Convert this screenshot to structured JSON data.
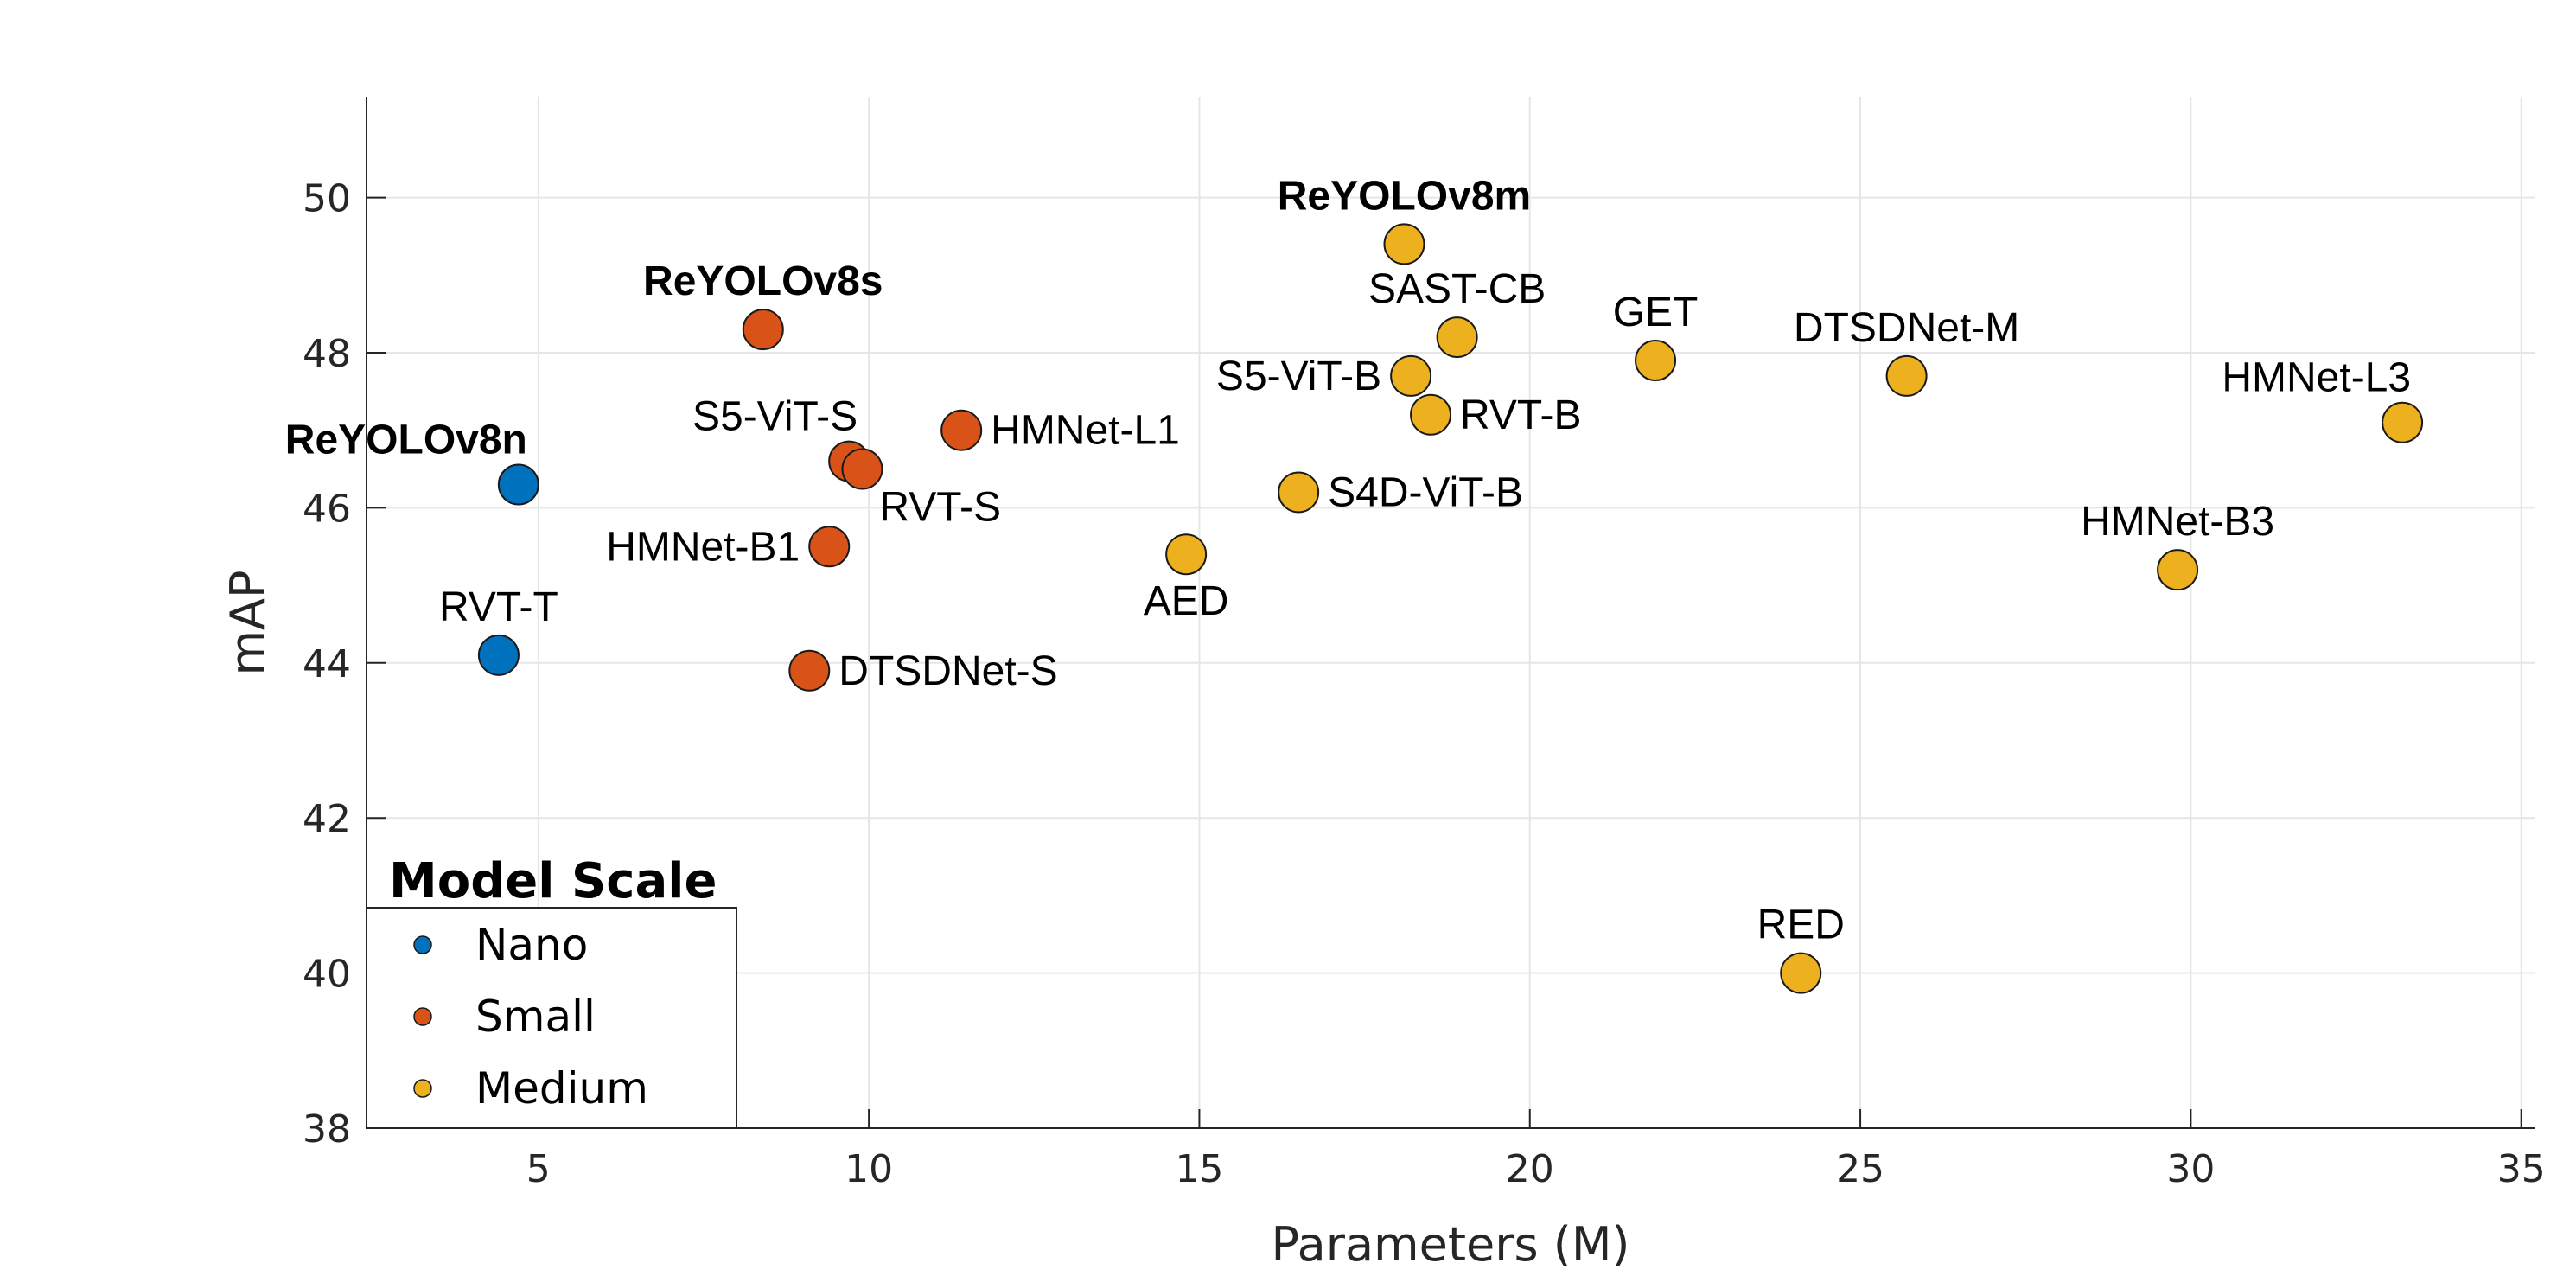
{
  "chart_data": {
    "type": "scatter",
    "title": "",
    "xlabel": "Parameters (M)",
    "ylabel": "mAP",
    "xlim": [
      2.4,
      35.2
    ],
    "ylim": [
      38,
      51.3
    ],
    "xticks": [
      5,
      10,
      15,
      20,
      25,
      30,
      35
    ],
    "yticks": [
      38,
      40,
      42,
      44,
      46,
      48,
      50
    ],
    "grid": true,
    "legend": {
      "title": "Model Scale",
      "placement": "bottom-left",
      "entries": [
        {
          "name": "Nano",
          "color": "#0072BD"
        },
        {
          "name": "Small",
          "color": "#D95319"
        },
        {
          "name": "Medium",
          "color": "#EDB120"
        }
      ]
    },
    "points": [
      {
        "name": "ReYOLOv8n",
        "x": 4.7,
        "y": 46.3,
        "scale": "Nano",
        "bold": true,
        "label_pos": "above-left"
      },
      {
        "name": "RVT-T",
        "x": 4.4,
        "y": 44.1,
        "scale": "Nano",
        "bold": false,
        "label_pos": "above"
      },
      {
        "name": "ReYOLOv8s",
        "x": 8.4,
        "y": 48.3,
        "scale": "Small",
        "bold": true,
        "label_pos": "above"
      },
      {
        "name": "S5-ViT-S",
        "x": 9.7,
        "y": 46.6,
        "scale": "Small",
        "bold": false,
        "label_pos": "above-left"
      },
      {
        "name": "RVT-S",
        "x": 9.9,
        "y": 46.5,
        "scale": "Small",
        "bold": false,
        "label_pos": "below-right"
      },
      {
        "name": "HMNet-L1",
        "x": 11.4,
        "y": 47.0,
        "scale": "Small",
        "bold": false,
        "label_pos": "right"
      },
      {
        "name": "HMNet-B1",
        "x": 9.4,
        "y": 45.5,
        "scale": "Small",
        "bold": false,
        "label_pos": "left"
      },
      {
        "name": "DTSDNet-S",
        "x": 9.1,
        "y": 43.9,
        "scale": "Small",
        "bold": false,
        "label_pos": "right"
      },
      {
        "name": "ReYOLOv8m",
        "x": 18.1,
        "y": 49.4,
        "scale": "Medium",
        "bold": true,
        "label_pos": "above"
      },
      {
        "name": "SAST-CB",
        "x": 18.9,
        "y": 48.2,
        "scale": "Medium",
        "bold": false,
        "label_pos": "above"
      },
      {
        "name": "S5-ViT-B",
        "x": 18.2,
        "y": 47.7,
        "scale": "Medium",
        "bold": false,
        "label_pos": "left"
      },
      {
        "name": "RVT-B",
        "x": 18.5,
        "y": 47.2,
        "scale": "Medium",
        "bold": false,
        "label_pos": "right"
      },
      {
        "name": "S4D-ViT-B",
        "x": 16.5,
        "y": 46.2,
        "scale": "Medium",
        "bold": false,
        "label_pos": "right"
      },
      {
        "name": "AED",
        "x": 14.8,
        "y": 45.4,
        "scale": "Medium",
        "bold": false,
        "label_pos": "below"
      },
      {
        "name": "GET",
        "x": 21.9,
        "y": 47.9,
        "scale": "Medium",
        "bold": false,
        "label_pos": "above"
      },
      {
        "name": "DTSDNet-M",
        "x": 25.7,
        "y": 47.7,
        "scale": "Medium",
        "bold": false,
        "label_pos": "above"
      },
      {
        "name": "HMNet-L3",
        "x": 33.2,
        "y": 47.1,
        "scale": "Medium",
        "bold": false,
        "label_pos": "above-left"
      },
      {
        "name": "HMNet-B3",
        "x": 29.8,
        "y": 45.2,
        "scale": "Medium",
        "bold": false,
        "label_pos": "above"
      },
      {
        "name": "RED",
        "x": 24.1,
        "y": 40.0,
        "scale": "Medium",
        "bold": false,
        "label_pos": "above"
      }
    ]
  }
}
